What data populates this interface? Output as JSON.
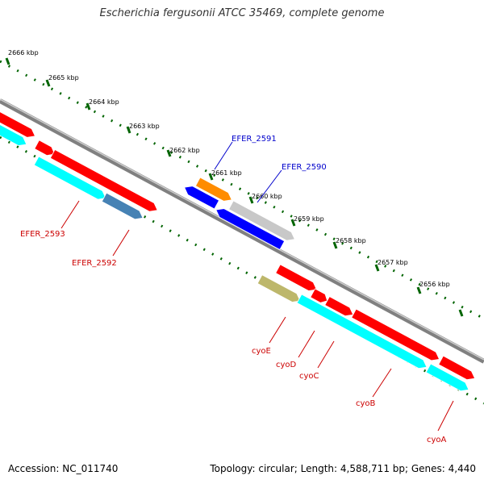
{
  "title": "Escherichia fergusonii ATCC 35469, complete genome",
  "footer": {
    "accession": "Accession: NC_011740",
    "topology": "Topology: circular; Length: 4,588,711 bp; Genes: 4,440"
  },
  "ticks": [
    {
      "label": "2666 kbp"
    },
    {
      "label": "2665 kbp"
    },
    {
      "label": "2664 kbp"
    },
    {
      "label": "2663 kbp"
    },
    {
      "label": "2662 kbp"
    },
    {
      "label": "2661 kbp"
    },
    {
      "label": "2660 kbp"
    },
    {
      "label": "2659 kbp"
    },
    {
      "label": "2658 kbp"
    },
    {
      "label": "2657 kbp"
    },
    {
      "label": "2656 kbp"
    }
  ],
  "gene_labels": [
    {
      "name": "EFER_2591",
      "color": "#0000cc"
    },
    {
      "name": "EFER_2590",
      "color": "#0000cc"
    },
    {
      "name": "EFER_2593",
      "color": "#cc0000"
    },
    {
      "name": "EFER_2592",
      "color": "#cc0000"
    },
    {
      "name": "cyoE",
      "color": "#cc0000"
    },
    {
      "name": "cyoD",
      "color": "#cc0000"
    },
    {
      "name": "cyoC",
      "color": "#cc0000"
    },
    {
      "name": "cyoB",
      "color": "#cc0000"
    },
    {
      "name": "cyoA",
      "color": "#cc0000"
    }
  ],
  "colors": {
    "cds_red": "#ff0000",
    "cds_cyan": "#00ffff",
    "cds_blue": "#0000ff",
    "cds_orange": "#ff8c00",
    "cds_gray": "#c8c8c8",
    "cds_olive": "#bdb76b",
    "cds_steelblue": "#4682b4",
    "backbone": "#808080",
    "tick_green": "#006400"
  }
}
